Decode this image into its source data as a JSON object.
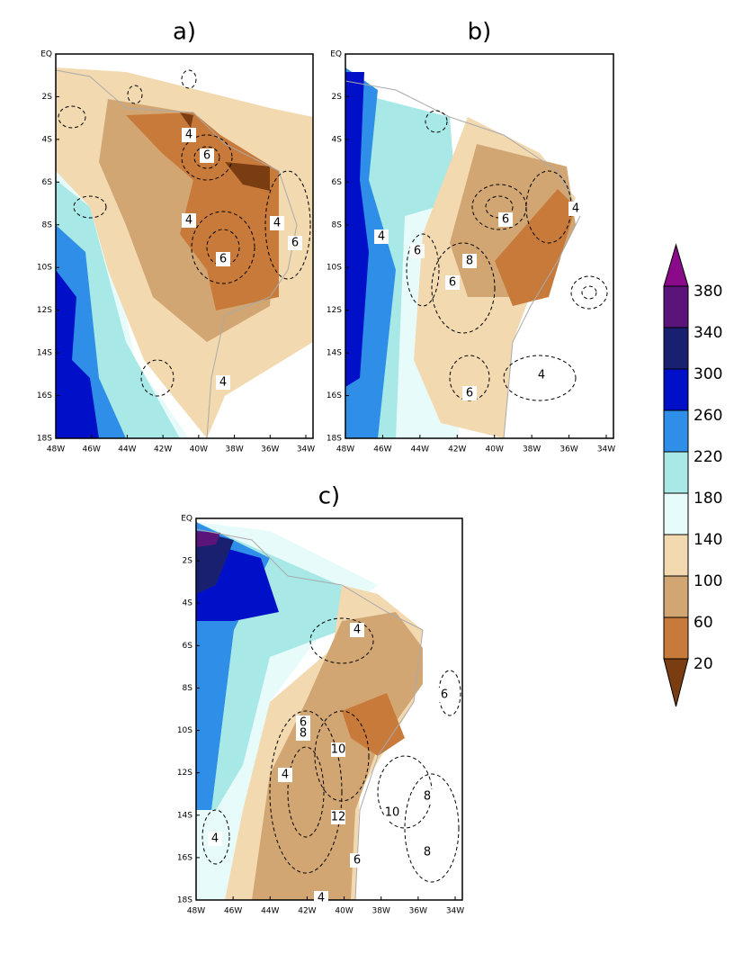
{
  "lat_ticks": [
    "EQ",
    "2S",
    "4S",
    "6S",
    "8S",
    "10S",
    "12S",
    "14S",
    "16S",
    "18S"
  ],
  "lon_ticks": [
    "48W",
    "46W",
    "44W",
    "42W",
    "40W",
    "38W",
    "36W",
    "34W"
  ],
  "panels": [
    {
      "label": "a)",
      "contour_labels": [
        4,
        6,
        4,
        6,
        4,
        6,
        4
      ]
    },
    {
      "label": "b)",
      "contour_labels": [
        4,
        6,
        8,
        6,
        6,
        4,
        6,
        4
      ]
    },
    {
      "label": "c)",
      "contour_labels": [
        4,
        6,
        8,
        10,
        4,
        12,
        10,
        8,
        8,
        6,
        4,
        6,
        4
      ]
    }
  ],
  "colorbar": {
    "levels": [
      20,
      60,
      100,
      140,
      180,
      220,
      260,
      300,
      340,
      380
    ],
    "colors": [
      "#7a3d12",
      "#c87a3a",
      "#d2a673",
      "#f2d9b0",
      "#e8fbfb",
      "#a8e8e6",
      "#2f8fe8",
      "#0010c8",
      "#1a2070",
      "#5a147a",
      "#8a0a8a"
    ]
  }
}
